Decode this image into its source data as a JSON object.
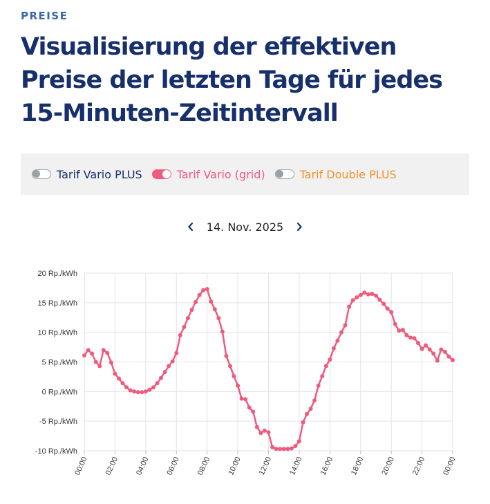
{
  "header": {
    "eyebrow": "PREISE",
    "title": "Visualisierung der effektiven Preise der letzten Tage für jedes 15-Minuten-Zeitintervall"
  },
  "filters": [
    {
      "label": "Tarif Vario PLUS",
      "enabled": false,
      "color": "#17306b"
    },
    {
      "label": "Tarif Vario (grid)",
      "enabled": true,
      "color": "#ee5b7d"
    },
    {
      "label": "Tarif Double PLUS",
      "enabled": false,
      "color": "#f0922e"
    }
  ],
  "date_nav": {
    "date": "14. Nov. 2025",
    "prev_icon": "chevron-left-icon",
    "next_icon": "chevron-right-icon"
  },
  "chart_data": {
    "type": "line",
    "xlabel": "",
    "ylabel": "",
    "ylim": [
      -10,
      20
    ],
    "xlim": [
      "00:00",
      "24:00"
    ],
    "y_tick_labels": [
      "20 Rp./kWh",
      "15 Rp./kWh",
      "10 Rp./kWh",
      "5 Rp./kWh",
      "0 Rp./kWh",
      "-5 Rp./kWh",
      "-10 Rp./kWh"
    ],
    "y_ticks": [
      20,
      15,
      10,
      5,
      0,
      -5,
      -10
    ],
    "x_tick_labels": [
      "00:00",
      "02:00",
      "04:00",
      "06:00",
      "08:00",
      "10:00",
      "12:00",
      "14:00",
      "16:00",
      "18:00",
      "20:00",
      "22:00",
      "00:00"
    ],
    "grid": true,
    "series": [
      {
        "color": "#ee5b7d",
        "interval_minutes": 15,
        "values": [
          6.1,
          7.0,
          6.4,
          5.0,
          4.3,
          7.0,
          6.5,
          4.9,
          3.0,
          2.2,
          1.4,
          0.7,
          0.2,
          0.0,
          -0.1,
          -0.1,
          0.0,
          0.3,
          0.7,
          1.4,
          2.3,
          3.3,
          4.3,
          5.1,
          6.5,
          9.5,
          10.9,
          12.4,
          13.8,
          15.1,
          16.3,
          17.1,
          17.3,
          15.2,
          13.9,
          12.4,
          10.1,
          6.0,
          4.3,
          2.6,
          1.0,
          -1.2,
          -1.3,
          -2.7,
          -3.4,
          -6.0,
          -7.0,
          -6.6,
          -6.9,
          -9.4,
          -9.7,
          -9.7,
          -9.7,
          -9.7,
          -9.6,
          -9.2,
          -8.4,
          -5.2,
          -3.8,
          -2.9,
          -1.5,
          1.0,
          2.6,
          4.3,
          5.4,
          7.3,
          8.6,
          10.0,
          11.2,
          14.3,
          15.4,
          15.9,
          16.3,
          16.7,
          16.4,
          16.5,
          16.2,
          15.5,
          14.8,
          14.0,
          13.4,
          11.4,
          10.3,
          10.4,
          9.5,
          9.1,
          9.0,
          8.2,
          7.2,
          7.8,
          7.1,
          6.4,
          5.2,
          7.1,
          6.7,
          5.9,
          5.3
        ]
      }
    ]
  }
}
